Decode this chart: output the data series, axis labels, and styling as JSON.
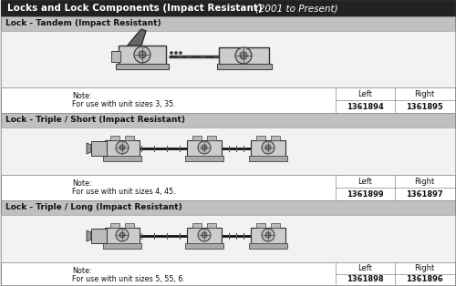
{
  "title_bold": "Locks and Lock Components (Impact Resistant)",
  "title_italic": "(2001 to Present)",
  "sections": [
    {
      "header": "Lock - Tandem (Impact Resistant)",
      "note_line1": "Note:",
      "note_line2": "For use with unit sizes 3, 35.",
      "left_num": "1361894",
      "right_num": "1361895",
      "type": "tandem"
    },
    {
      "header": "Lock - Triple / Short (Impact Resistant)",
      "note_line1": "Note:",
      "note_line2": "For use with unit sizes 4, 45.",
      "left_num": "1361899",
      "right_num": "1361897",
      "type": "triple"
    },
    {
      "header": "Lock - Triple / Long (Impact Resistant)",
      "note_line1": "Note:",
      "note_line2": "For use with unit sizes 5, 55, 6.",
      "left_num": "1361898",
      "right_num": "1361896",
      "type": "triple"
    }
  ],
  "title_bg": "#222222",
  "title_fg": "#ffffff",
  "section_header_bg": "#bbbbbb",
  "img_bg": "#f0f0f0",
  "table_bg": "#ffffff",
  "border_color": "#888888",
  "text_color": "#111111",
  "col_left": "Left",
  "col_right": "Right"
}
